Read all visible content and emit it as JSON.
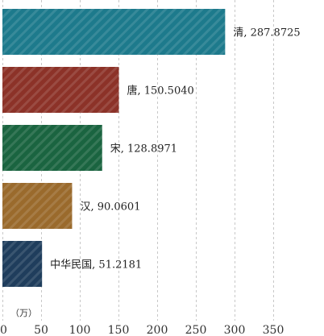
{
  "chart_data": {
    "type": "bar",
    "orientation": "horizontal",
    "categories": [
      "清",
      "唐",
      "宋",
      "汉",
      "中华民国"
    ],
    "values": [
      287.8725,
      150.504,
      128.8971,
      90.0601,
      51.2181
    ],
    "value_labels": [
      "清, 287.8725",
      "唐, 150.5040",
      "宋, 128.8971",
      "汉, 90.0601",
      "中华民国, 51.2181"
    ],
    "colors": [
      "#1d7a8c",
      "#8c3228",
      "#1a6440",
      "#9a6a2c",
      "#1f3d5c"
    ],
    "xlim": [
      0,
      350
    ],
    "xticks": [
      0,
      50,
      100,
      150,
      200,
      250,
      300,
      350
    ],
    "unit": "（万）",
    "grid": true,
    "bar_pattern": "diagonal-stripes"
  }
}
